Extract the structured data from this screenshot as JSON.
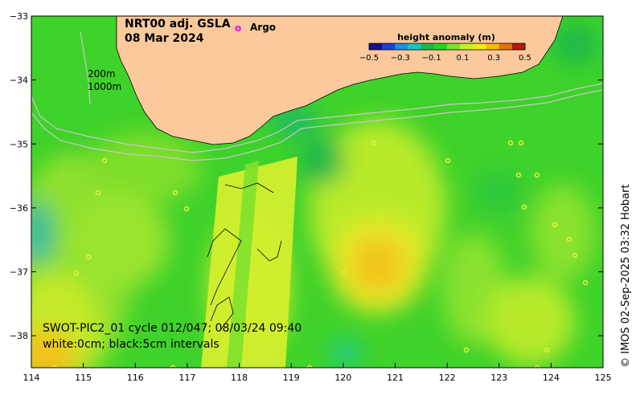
{
  "title": {
    "product": "NRT00 adj. GSLA",
    "date": "08 Mar 2024"
  },
  "legend": {
    "argo_label": "Argo",
    "argo_color": "#ff00ff",
    "argo_symbol": "o"
  },
  "colorbar": {
    "title": "height anomaly (m)",
    "ticks": [
      "−0.5",
      "−0.3",
      "−0.1",
      "0.1",
      "0.3",
      "0.5"
    ],
    "tick_values": [
      -0.5,
      -0.3,
      -0.1,
      0.1,
      0.3,
      0.5
    ],
    "range": [
      -0.5,
      0.5
    ],
    "colors": [
      "#1a0f8c",
      "#1f3fd8",
      "#1e90e0",
      "#19c7c0",
      "#1fb84a",
      "#25d51f",
      "#7ce52a",
      "#c6ee2a",
      "#f3e81f",
      "#f5b80a",
      "#e8720a",
      "#b51a0d"
    ]
  },
  "isobaths": {
    "shallow": "200m",
    "deep": "1000m"
  },
  "swot": {
    "line1": "SWOT-PIC2_01 cycle 012/047; 08/03/24 09:40",
    "line2": "white:0cm; black:5cm intervals"
  },
  "credit": "© IMOS 02-Sep-2025 03:32 Hobart",
  "axes": {
    "lon_ticks": [
      "114",
      "115",
      "116",
      "117",
      "118",
      "119",
      "120",
      "121",
      "122",
      "123",
      "124",
      "125"
    ],
    "lon_values": [
      114,
      115,
      116,
      117,
      118,
      119,
      120,
      121,
      122,
      123,
      124,
      125
    ],
    "lat_ticks": [
      "−33",
      "−34",
      "−35",
      "−36",
      "−37",
      "−38"
    ],
    "lat_values": [
      -33,
      -34,
      -35,
      -36,
      -37,
      -38
    ],
    "lon_range": [
      114,
      125
    ],
    "lat_range": [
      -38.5,
      -33
    ]
  },
  "colors": {
    "land": "#fbc99b",
    "coast": "#000000",
    "isobath": "#c8c8c8"
  }
}
